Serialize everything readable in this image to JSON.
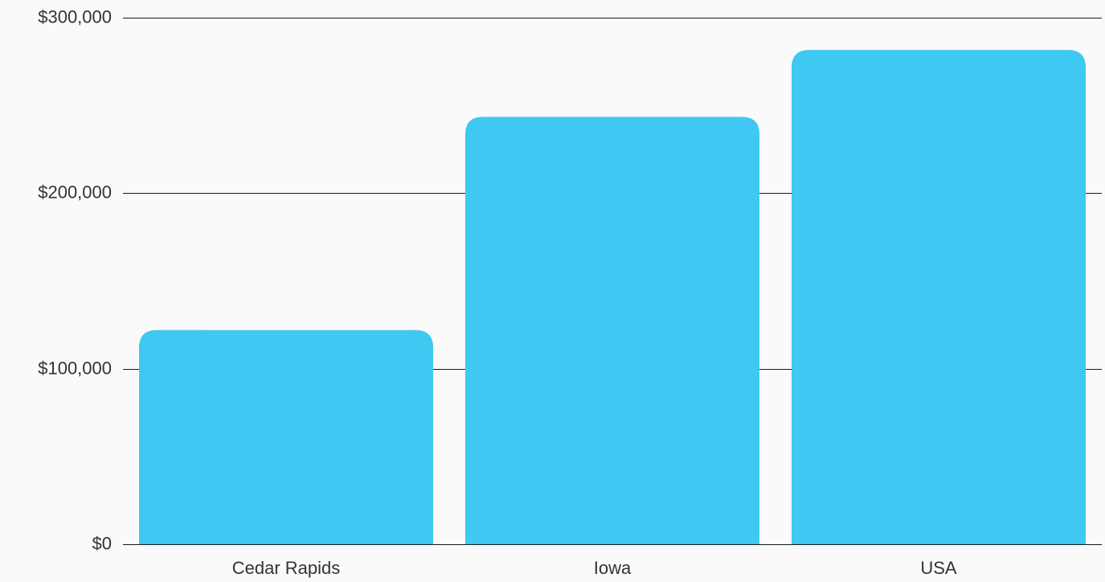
{
  "chart_data": {
    "type": "bar",
    "categories": [
      "Cedar Rapids",
      "Iowa",
      "USA"
    ],
    "values": [
      122000,
      243500,
      281600
    ],
    "ylim": [
      0,
      300000
    ],
    "yticks": [
      0,
      100000,
      200000,
      300000
    ],
    "ytick_labels": [
      "$0",
      "$100,000",
      "$200,000",
      "$300,000"
    ],
    "title": "",
    "xlabel": "",
    "ylabel": "",
    "grid": true,
    "bar_color": "#3ec8f2",
    "background_color": "#fafafa"
  }
}
